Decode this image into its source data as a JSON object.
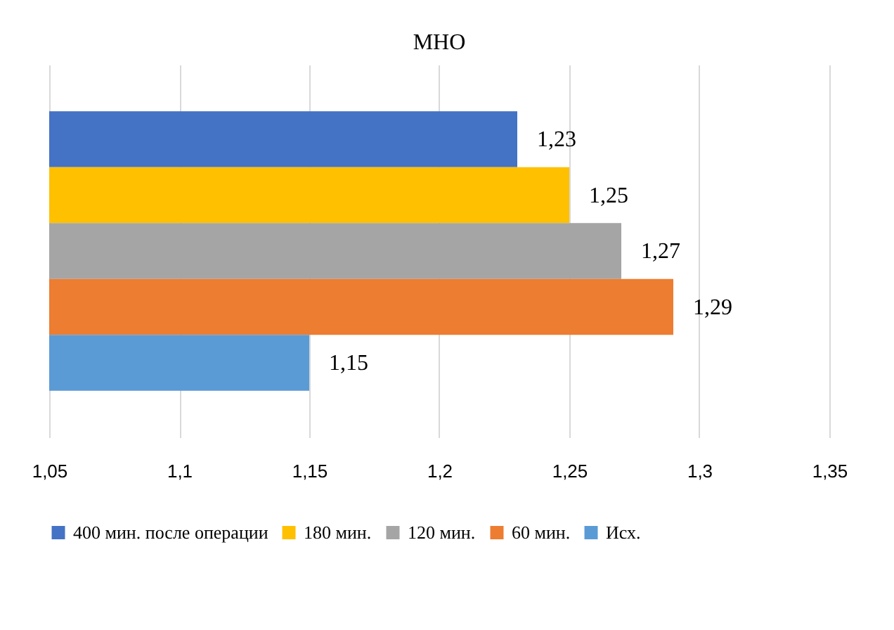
{
  "chart_data": {
    "type": "bar",
    "orientation": "horizontal",
    "title": "МНО",
    "categories": [
      null
    ],
    "series": [
      {
        "name": "400 мин. после операции",
        "color": "#4472c4",
        "values": [
          1.23
        ],
        "value_labels": [
          "1,23"
        ]
      },
      {
        "name": "180 мин.",
        "color": "#ffc000",
        "values": [
          1.25
        ],
        "value_labels": [
          "1,25"
        ]
      },
      {
        "name": "120 мин.",
        "color": "#a5a5a5",
        "values": [
          1.27
        ],
        "value_labels": [
          "1,27"
        ]
      },
      {
        "name": "60 мин.",
        "color": "#ed7d31",
        "values": [
          1.29
        ],
        "value_labels": [
          "1,29"
        ]
      },
      {
        "name": "Исх.",
        "color": "#5b9bd5",
        "values": [
          1.15
        ],
        "value_labels": [
          "1,15"
        ]
      }
    ],
    "xlim": [
      1.05,
      1.35
    ],
    "xticks": [
      {
        "value": 1.05,
        "label": "1,05"
      },
      {
        "value": 1.1,
        "label": "1,1"
      },
      {
        "value": 1.15,
        "label": "1,15"
      },
      {
        "value": 1.2,
        "label": "1,2"
      },
      {
        "value": 1.25,
        "label": "1,25"
      },
      {
        "value": 1.3,
        "label": "1,3"
      },
      {
        "value": 1.35,
        "label": "1,35"
      }
    ],
    "grid": "x",
    "legend": "bottom"
  }
}
